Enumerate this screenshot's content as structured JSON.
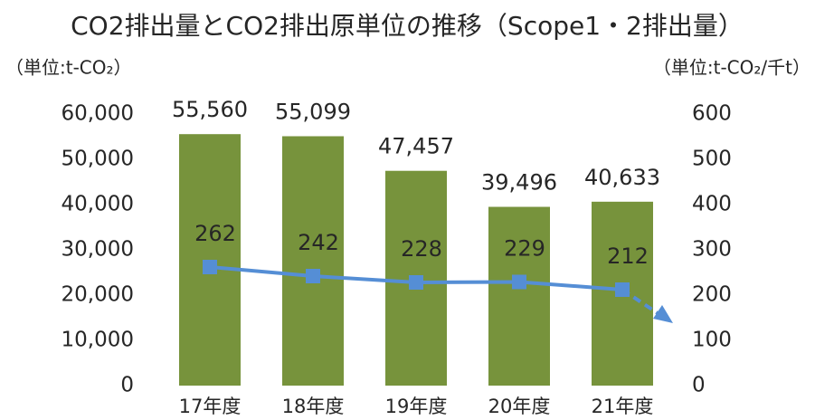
{
  "chart_data": {
    "type": "bar+line",
    "title": "CO2排出量とCO2排出原単位の推移（Scope1・2排出量）",
    "y_label": "（単位:t-CO₂）",
    "y2_label": "（単位:t-CO₂/千t）",
    "categories": [
      "17年度",
      "18年度",
      "19年度",
      "20年度",
      "21年度"
    ],
    "series": [
      {
        "name": "CO2排出量",
        "type": "bar",
        "color": "#77933c",
        "values": [
          55560,
          55099,
          47457,
          39496,
          40633
        ],
        "value_labels": [
          "55,560",
          "55,099",
          "47,457",
          "39,496",
          "40,633"
        ]
      },
      {
        "name": "CO2排出原単位",
        "type": "line",
        "axis": "y2",
        "color": "#558ed5",
        "values": [
          262,
          242,
          228,
          229,
          212
        ]
      }
    ],
    "ylim": [
      0,
      60000
    ],
    "yticks": [
      0,
      {
        "value": 10000,
        "label": "10,000"
      },
      {
        "value": 20000,
        "label": "20,000"
      },
      {
        "value": 30000,
        "label": "30,000"
      },
      {
        "value": 40000,
        "label": "40,000"
      },
      {
        "value": 50000,
        "label": "50,000"
      },
      {
        "value": 60000,
        "label": "60,000"
      }
    ],
    "y2lim": [
      0,
      600
    ],
    "y2ticks": [
      0,
      100,
      200,
      300,
      400,
      500,
      600
    ]
  }
}
